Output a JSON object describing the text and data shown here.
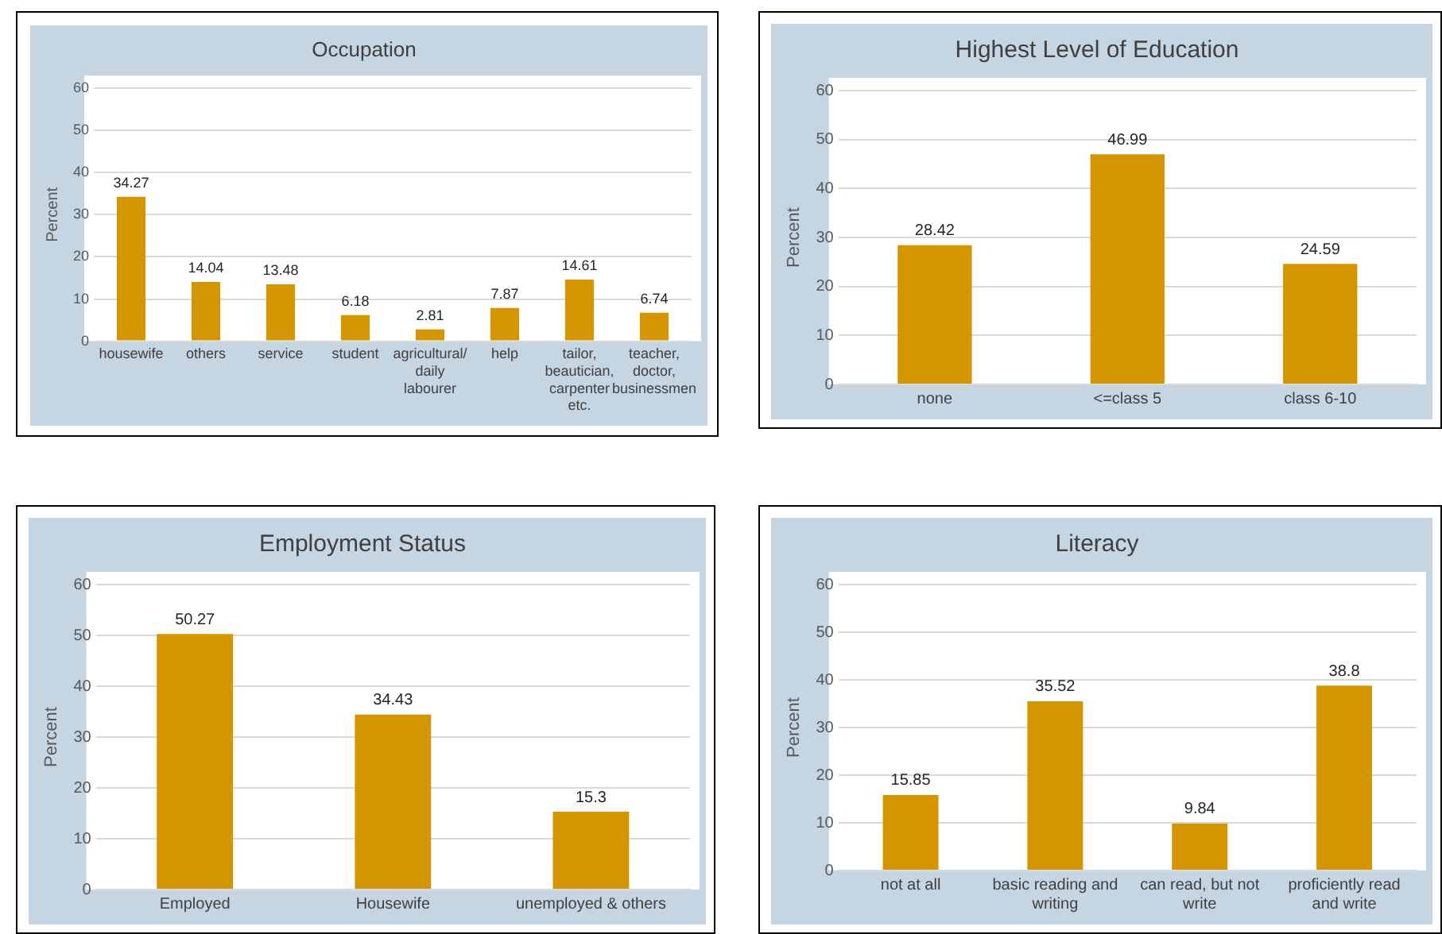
{
  "chart_data": [
    {
      "type": "bar",
      "title": "Occupation",
      "ylabel": "Percent",
      "categories": [
        "housewife",
        "others",
        "service",
        "student",
        "agricultural/ daily labourer",
        "help",
        "tailor, beautician, carpenter etc.",
        "teacher, doctor, businessmen"
      ],
      "values": [
        34.27,
        14.04,
        13.48,
        6.18,
        2.81,
        7.87,
        14.61,
        6.74
      ],
      "color": "#d39600",
      "ylim": [
        0,
        60
      ],
      "yticks": [
        0,
        10,
        20,
        30,
        40,
        50,
        60
      ],
      "grid": "y",
      "legend": false,
      "data_labels": true
    },
    {
      "type": "bar",
      "title": "Highest Level of Education",
      "ylabel": "Percent",
      "categories": [
        "none",
        "<=class 5",
        "class 6-10"
      ],
      "values": [
        28.42,
        46.99,
        24.59
      ],
      "color": "#d39600",
      "ylim": [
        0,
        60
      ],
      "yticks": [
        0,
        10,
        20,
        30,
        40,
        50,
        60
      ],
      "grid": "y",
      "legend": false,
      "data_labels": true
    },
    {
      "type": "bar",
      "title": "Employment Status",
      "ylabel": "Percent",
      "categories": [
        "Employed",
        "Housewife",
        "unemployed & others"
      ],
      "values": [
        50.27,
        34.43,
        15.3
      ],
      "color": "#d39600",
      "ylim": [
        0,
        60
      ],
      "yticks": [
        0,
        10,
        20,
        30,
        40,
        50,
        60
      ],
      "grid": "y",
      "legend": false,
      "data_labels": true
    },
    {
      "type": "bar",
      "title": "Literacy",
      "ylabel": "Percent",
      "categories": [
        "not at all",
        "basic reading and writing",
        "can read, but not write",
        "proficiently read and write"
      ],
      "values": [
        15.85,
        35.52,
        9.84,
        38.8
      ],
      "color": "#d39600",
      "ylim": [
        0,
        60
      ],
      "yticks": [
        0,
        10,
        20,
        30,
        40,
        50,
        60
      ],
      "grid": "y",
      "legend": false,
      "data_labels": true
    }
  ]
}
